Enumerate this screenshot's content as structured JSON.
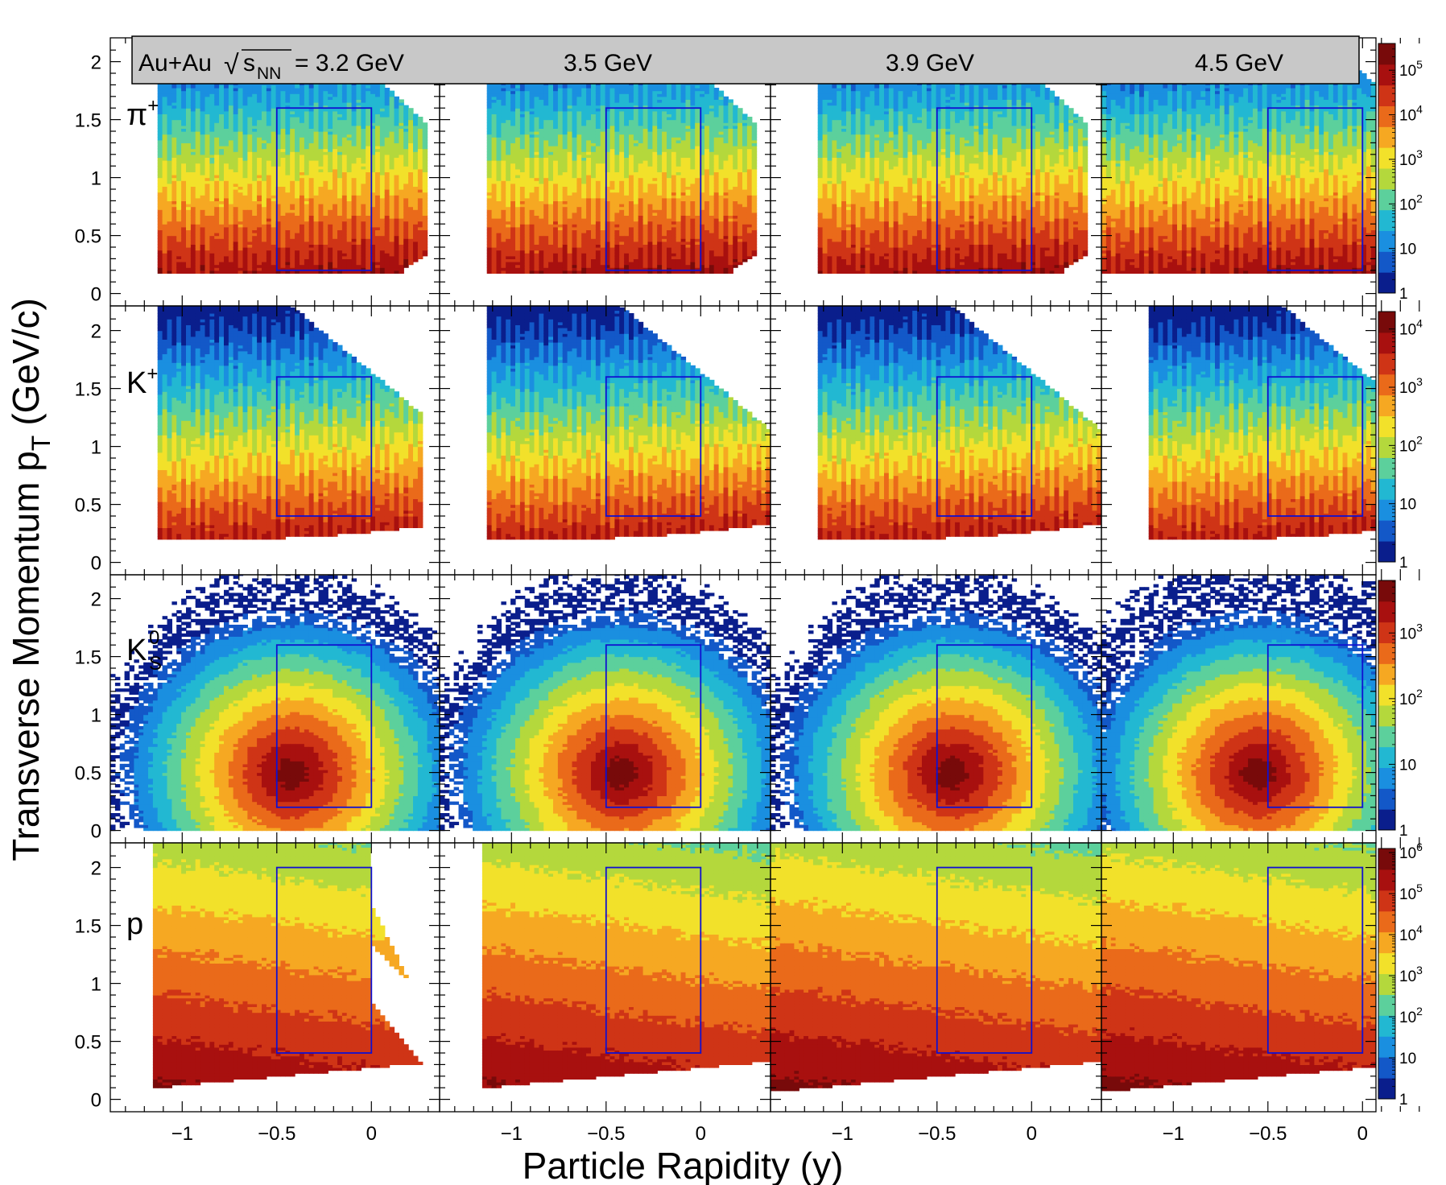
{
  "figure": {
    "xlabel": "Particle Rapidity (y)",
    "ylabel": "Transverse Momentum p",
    "ylabel_sub": "T",
    "ylabel_units": "(GeV/c)",
    "header": {
      "system": "Au+Au",
      "sqrt": "√",
      "s": "s",
      "s_sub": "NN",
      "eq_energy": "= 3.2 GeV",
      "energies": [
        "3.5 GeV",
        "3.9 GeV",
        "4.5 GeV"
      ]
    },
    "particles": [
      {
        "main": "π",
        "sup": "+",
        "sub": ""
      },
      {
        "main": "K",
        "sup": "+",
        "sub": ""
      },
      {
        "main": "K",
        "sup": "0",
        "sub": "S"
      },
      {
        "main": "p",
        "sup": "",
        "sub": ""
      }
    ],
    "x_tick_labels": [
      "−1",
      "−0.5",
      "0"
    ],
    "y_tick_labels": [
      "0",
      "0.5",
      "1",
      "1.5",
      "2"
    ],
    "colorbars": [
      {
        "labels": [
          {
            "base": "1",
            "exp": ""
          },
          {
            "base": "10",
            "exp": ""
          },
          {
            "base": "10",
            "exp": "2"
          },
          {
            "base": "10",
            "exp": "3"
          },
          {
            "base": "10",
            "exp": "4"
          },
          {
            "base": "10",
            "exp": "5"
          }
        ]
      },
      {
        "labels": [
          {
            "base": "1",
            "exp": ""
          },
          {
            "base": "10",
            "exp": ""
          },
          {
            "base": "10",
            "exp": "2"
          },
          {
            "base": "10",
            "exp": "3"
          },
          {
            "base": "10",
            "exp": "4"
          }
        ]
      },
      {
        "labels": [
          {
            "base": "1",
            "exp": ""
          },
          {
            "base": "10",
            "exp": ""
          },
          {
            "base": "10",
            "exp": "2"
          },
          {
            "base": "10",
            "exp": "3"
          }
        ]
      },
      {
        "labels": [
          {
            "base": "1",
            "exp": ""
          },
          {
            "base": "10",
            "exp": ""
          },
          {
            "base": "10",
            "exp": "2"
          },
          {
            "base": "10",
            "exp": "3"
          },
          {
            "base": "10",
            "exp": "4"
          },
          {
            "base": "10",
            "exp": "5"
          },
          {
            "base": "10",
            "exp": "6"
          }
        ]
      }
    ],
    "colormap": [
      "#0a1e8c",
      "#1358c8",
      "#1a8fe0",
      "#22b8d2",
      "#5cd09c",
      "#b4d83c",
      "#f2e12a",
      "#f6a822",
      "#ea6a1a",
      "#cf3416",
      "#a8100f",
      "#780a0a"
    ]
  },
  "chart_data": {
    "type": "heatmap",
    "title": "",
    "xlabel": "Particle Rapidity (y)",
    "ylabel": "Transverse Momentum p_T (GeV/c)",
    "xlim": [
      -1.38,
      0.36
    ],
    "ylim": [
      -0.1,
      2.2
    ],
    "z_scale": "log",
    "grid": false,
    "columns": [
      "Au+Au √sNN = 3.2 GeV",
      "3.5 GeV",
      "3.9 GeV",
      "4.5 GeV"
    ],
    "rows": [
      "π+",
      "K+",
      "K0S",
      "p"
    ],
    "panels": [
      {
        "row": "π+",
        "energy": "3.2 GeV",
        "zmax_decades": 5.6,
        "box": {
          "y": [
            -0.5,
            0
          ],
          "pt": [
            0.2,
            1.6
          ]
        }
      },
      {
        "row": "π+",
        "energy": "3.5 GeV",
        "zmax_decades": 5.6,
        "box": {
          "y": [
            -0.5,
            0
          ],
          "pt": [
            0.2,
            1.6
          ]
        }
      },
      {
        "row": "π+",
        "energy": "3.9 GeV",
        "zmax_decades": 5.6,
        "box": {
          "y": [
            -0.5,
            0
          ],
          "pt": [
            0.2,
            1.6
          ]
        }
      },
      {
        "row": "π+",
        "energy": "4.5 GeV",
        "zmax_decades": 5.6,
        "box": {
          "y": [
            -0.5,
            0
          ],
          "pt": [
            0.2,
            1.6
          ]
        }
      },
      {
        "row": "K+",
        "energy": "3.2 GeV",
        "zmax_decades": 4.3,
        "box": {
          "y": [
            -0.5,
            0
          ],
          "pt": [
            0.4,
            1.6
          ]
        }
      },
      {
        "row": "K+",
        "energy": "3.5 GeV",
        "zmax_decades": 4.3,
        "box": {
          "y": [
            -0.5,
            0
          ],
          "pt": [
            0.4,
            1.6
          ]
        }
      },
      {
        "row": "K+",
        "energy": "3.9 GeV",
        "zmax_decades": 4.3,
        "box": {
          "y": [
            -0.5,
            0
          ],
          "pt": [
            0.4,
            1.6
          ]
        }
      },
      {
        "row": "K+",
        "energy": "4.5 GeV",
        "zmax_decades": 4.3,
        "box": {
          "y": [
            -0.5,
            0
          ],
          "pt": [
            0.4,
            1.6
          ]
        }
      },
      {
        "row": "K0S",
        "energy": "3.2 GeV",
        "zmax_decades": 3.8,
        "box": {
          "y": [
            -0.5,
            0
          ],
          "pt": [
            0.2,
            1.6
          ]
        }
      },
      {
        "row": "K0S",
        "energy": "3.5 GeV",
        "zmax_decades": 3.8,
        "box": {
          "y": [
            -0.5,
            0
          ],
          "pt": [
            0.2,
            1.6
          ]
        }
      },
      {
        "row": "K0S",
        "energy": "3.9 GeV",
        "zmax_decades": 3.8,
        "box": {
          "y": [
            -0.5,
            0
          ],
          "pt": [
            0.2,
            1.6
          ]
        }
      },
      {
        "row": "K0S",
        "energy": "4.5 GeV",
        "zmax_decades": 3.8,
        "box": {
          "y": [
            -0.5,
            0
          ],
          "pt": [
            0.2,
            1.6
          ]
        }
      },
      {
        "row": "p",
        "energy": "3.2 GeV",
        "zmax_decades": 6.1,
        "box": {
          "y": [
            -0.5,
            0
          ],
          "pt": [
            0.4,
            2.0
          ]
        }
      },
      {
        "row": "p",
        "energy": "3.5 GeV",
        "zmax_decades": 6.1,
        "box": {
          "y": [
            -0.5,
            0
          ],
          "pt": [
            0.4,
            2.0
          ]
        }
      },
      {
        "row": "p",
        "energy": "3.9 GeV",
        "zmax_decades": 6.1,
        "box": {
          "y": [
            -0.5,
            0
          ],
          "pt": [
            0.4,
            2.0
          ]
        }
      },
      {
        "row": "p",
        "energy": "4.5 GeV",
        "zmax_decades": 6.1,
        "box": {
          "y": [
            -0.5,
            0
          ],
          "pt": [
            0.4,
            2.0
          ]
        }
      }
    ]
  }
}
